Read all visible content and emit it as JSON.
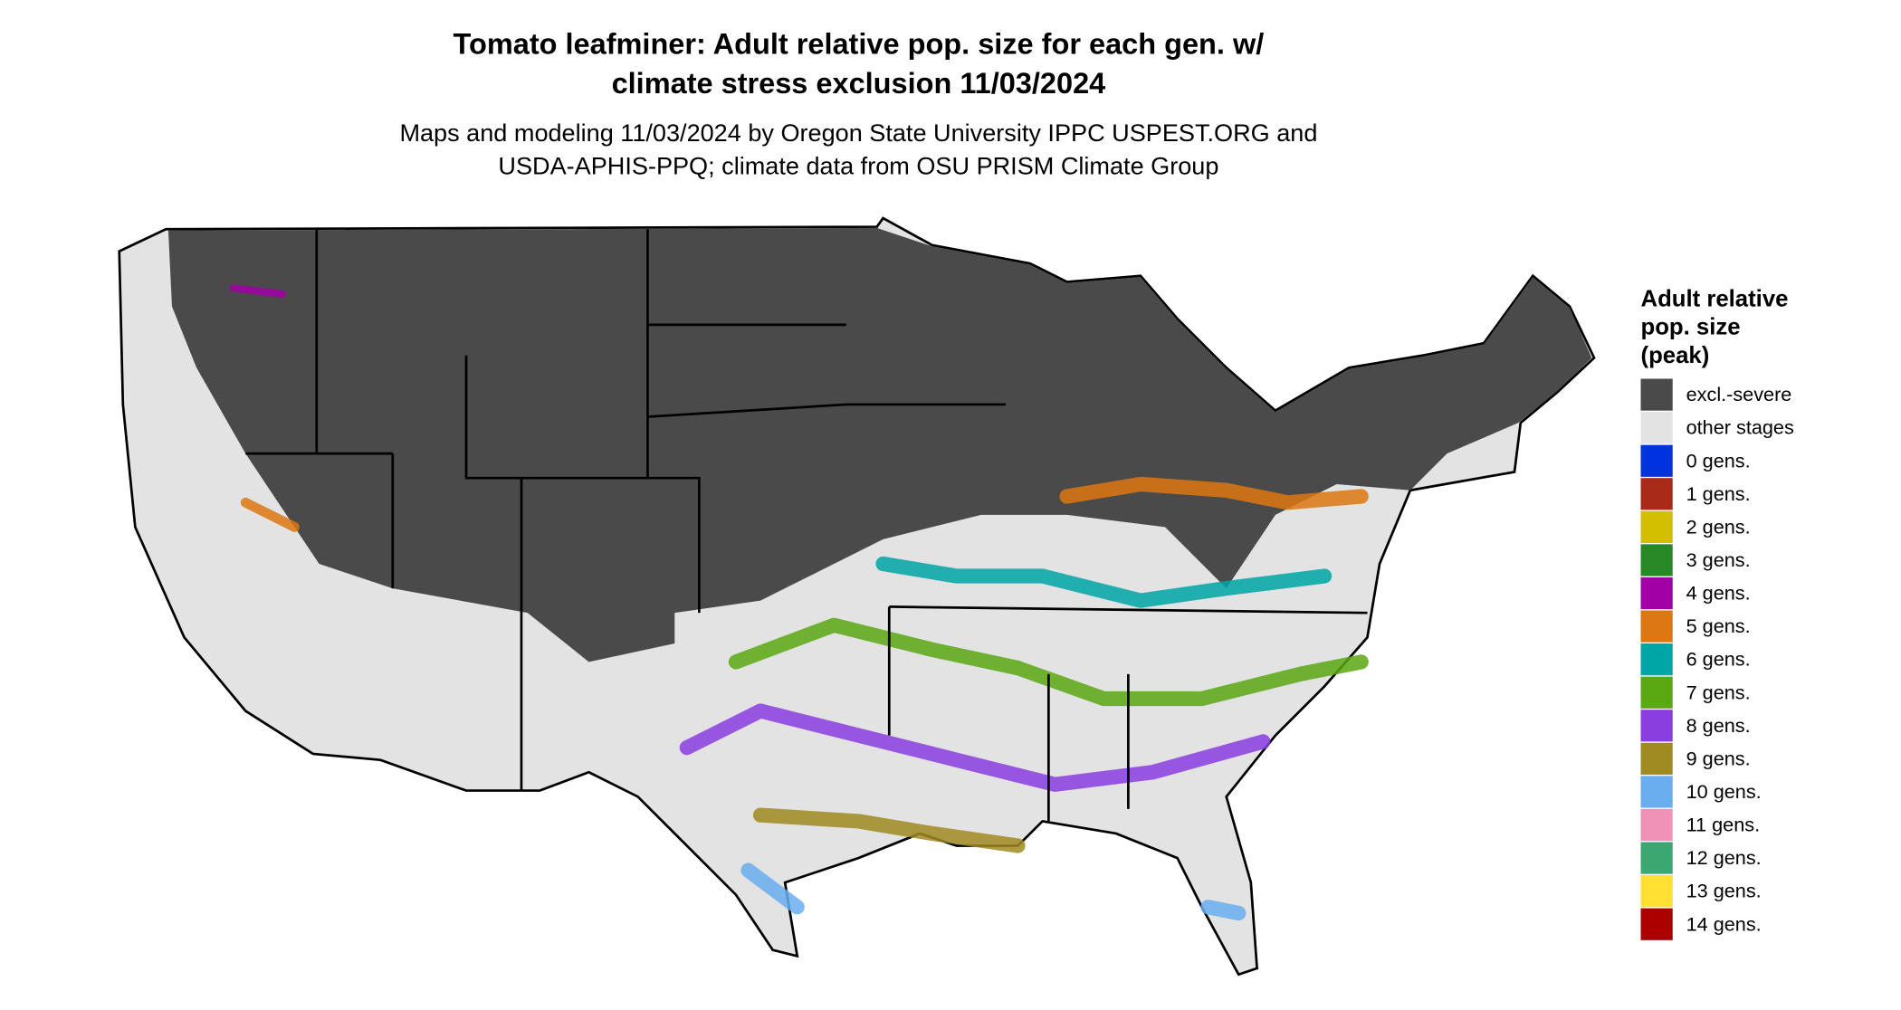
{
  "title": [
    "Tomato leafminer: Adult relative pop. size for each gen. w/",
    "climate stress exclusion 11/03/2024"
  ],
  "subtitle": [
    "Maps and modeling 11/03/2024 by Oregon State University IPPC USPEST.ORG and",
    "USDA-APHIS-PPQ; climate data from OSU PRISM Climate Group"
  ],
  "legend": {
    "title": [
      "Adult relative",
      "pop. size",
      "(peak)"
    ],
    "items": [
      {
        "label": "excl.-severe",
        "color": "#4a4a4a"
      },
      {
        "label": "other stages",
        "color": "#e3e3e3"
      },
      {
        "label": "0 gens.",
        "color": "#0033dd"
      },
      {
        "label": "1 gens.",
        "color": "#aa2a1a"
      },
      {
        "label": "2 gens.",
        "color": "#d4be00"
      },
      {
        "label": "3 gens.",
        "color": "#278a27"
      },
      {
        "label": "4 gens.",
        "color": "#a000a6"
      },
      {
        "label": "5 gens.",
        "color": "#dd7711"
      },
      {
        "label": "6 gens.",
        "color": "#00a5a5"
      },
      {
        "label": "7 gens.",
        "color": "#5aa812"
      },
      {
        "label": "8 gens.",
        "color": "#8a3ee0"
      },
      {
        "label": "9 gens.",
        "color": "#a08a22"
      },
      {
        "label": "10 gens.",
        "color": "#6aaef0"
      },
      {
        "label": "11 gens.",
        "color": "#f092b8"
      },
      {
        "label": "12 gens.",
        "color": "#3aa870"
      },
      {
        "label": "13 gens.",
        "color": "#ffe033"
      },
      {
        "label": "14 gens.",
        "color": "#aa0000"
      }
    ]
  }
}
